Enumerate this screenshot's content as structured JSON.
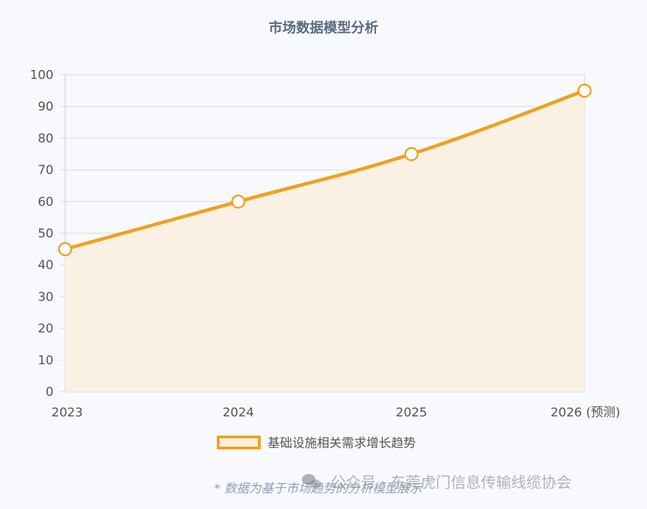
{
  "chart_data": {
    "type": "area",
    "title": "市场数据模型分析",
    "categories": [
      "2023",
      "2024",
      "2025",
      "2026 (预测)"
    ],
    "series": [
      {
        "name": "基础设施相关需求增长趋势",
        "values": [
          45,
          60,
          75,
          95
        ]
      }
    ],
    "yticks": [
      "0",
      "10",
      "20",
      "30",
      "40",
      "50",
      "60",
      "70",
      "80",
      "90",
      "100"
    ],
    "ylim": [
      0,
      100
    ],
    "grid": true,
    "legend": "bottom",
    "line_color": "#f0a020",
    "fill_color": "#faf1e4"
  },
  "footnote": "* 数据为基于市场趋势的分析模型展示",
  "watermark": "公众号 · 东莞虎门信息传输线缆协会"
}
